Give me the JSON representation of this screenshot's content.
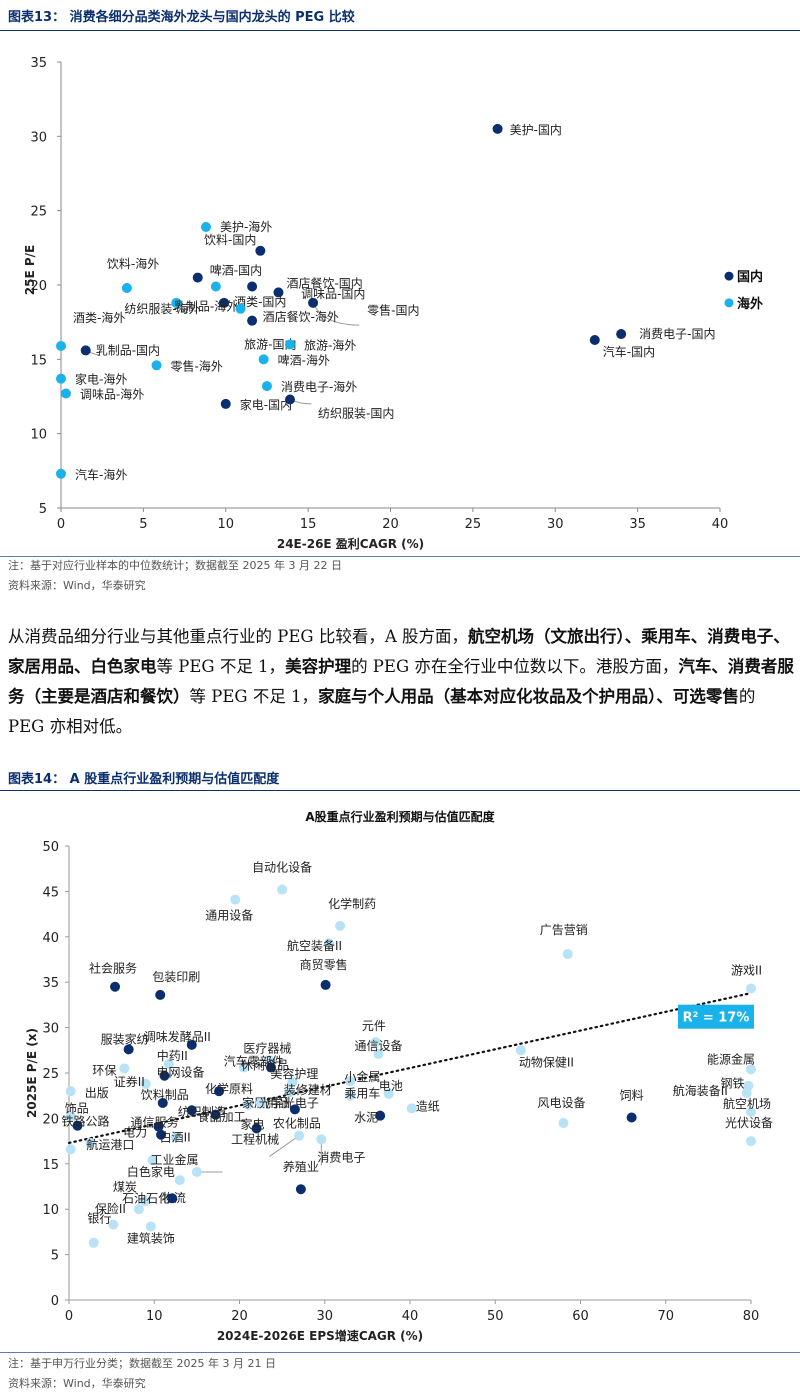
{
  "figure1": {
    "title": "图表13：  消费各细分品类海外龙头与国内龙头的 PEG 比较",
    "note": "注：基于对应行业样本的中位数统计；数据截至 2025 年 3 月 22 日",
    "source": "资料来源：Wind，华泰研究"
  },
  "paragraph": {
    "p1": "从消费品细分行业与其他重点行业的 PEG 比较看，A 股方面，",
    "b1": "航空机场（文旅出行）、乘用车、消费电子、家居用品、白色家电",
    "p2": "等 PEG 不足 1，",
    "b2": "美容护理",
    "p3": "的 PEG 亦在全行业中位数以下。港股方面，",
    "b3": "汽车、消费者服务（主要是酒店和餐饮）",
    "p4": "等 PEG 不足 1，",
    "b4": "家庭与个人用品（基本对应化妆品及个护用品）、可选零售",
    "p5": "的 PEG 亦相对低。"
  },
  "figure2": {
    "title": "图表14：  A 股重点行业盈利预期与估值匹配度",
    "note": "注：基于申万行业分类；数据截至 2025 年 3 月 21 日",
    "source": "资料来源：Wind，华泰研究"
  },
  "colors": {
    "domestic": "#0b2f6e",
    "overseas": "#1ab2ea",
    "ashare_dark": "#0b2f6e",
    "ashare_light": "#b8e2f5",
    "r2_box": "#1ab2ea"
  },
  "chart_data": [
    {
      "type": "scatter",
      "title": "",
      "xlabel": "24E-26E 盈利CAGR (%)",
      "ylabel": "25E P/E",
      "xlim": [
        0,
        40
      ],
      "ylim": [
        5,
        35
      ],
      "xticks": [
        0,
        5,
        10,
        15,
        20,
        25,
        30,
        35,
        40
      ],
      "yticks": [
        5,
        10,
        15,
        20,
        25,
        30,
        35
      ],
      "legend": "right",
      "series": [
        {
          "name": "国内",
          "color": "#0b2f6e",
          "points": [
            {
              "label": "美护-国内",
              "x": 26.5,
              "y": 30.5
            },
            {
              "label": "饮料-国内",
              "x": 12.1,
              "y": 22.3
            },
            {
              "label": "啤酒-国内",
              "x": 8.3,
              "y": 20.5
            },
            {
              "label": "酒店餐饮-国内",
              "x": 13.2,
              "y": 19.5
            },
            {
              "label": "调味品-国内",
              "x": 15.3,
              "y": 18.8
            },
            {
              "label": "零售-国内",
              "x": 11.6,
              "y": 19.9
            },
            {
              "label": "酒类-国内",
              "x": 9.9,
              "y": 18.8
            },
            {
              "label": "乳制品-国内",
              "x": 1.5,
              "y": 15.6
            },
            {
              "label": "旅游-国内",
              "x": 11.6,
              "y": 17.6
            },
            {
              "label": "家电-国内",
              "x": 10.0,
              "y": 12.0
            },
            {
              "label": "纺织服装-国内",
              "x": 13.9,
              "y": 12.3
            },
            {
              "label": "消费电子-国内",
              "x": 34.0,
              "y": 16.7
            },
            {
              "label": "汽车-国内",
              "x": 32.4,
              "y": 16.3
            }
          ]
        },
        {
          "name": "海外",
          "color": "#1ab2ea",
          "points": [
            {
              "label": "美护-海外",
              "x": 8.8,
              "y": 23.9
            },
            {
              "label": "饮料-海外",
              "x": 4.0,
              "y": 19.8
            },
            {
              "label": "纺织服装-海外",
              "x": 7.0,
              "y": 18.8
            },
            {
              "label": "乳制品-海外",
              "x": 9.4,
              "y": 19.9
            },
            {
              "label": "酒店餐饮-海外",
              "x": 10.9,
              "y": 18.4
            },
            {
              "label": "酒类-海外",
              "x": 0.0,
              "y": 15.9
            },
            {
              "label": "旅游-海外",
              "x": 13.9,
              "y": 16.0
            },
            {
              "label": "啤酒-海外",
              "x": 12.3,
              "y": 15.0
            },
            {
              "label": "零售-海外",
              "x": 5.8,
              "y": 14.6
            },
            {
              "label": "家电-海外",
              "x": 0.0,
              "y": 13.7
            },
            {
              "label": "调味品-海外",
              "x": 0.3,
              "y": 12.7
            },
            {
              "label": "消费电子-海外",
              "x": 12.5,
              "y": 13.2
            },
            {
              "label": "汽车-海外",
              "x": 0.0,
              "y": 7.3
            }
          ]
        }
      ]
    },
    {
      "type": "scatter",
      "title": "A股重点行业盈利预期与估值匹配度",
      "xlabel": "2024E-2026E EPS增速CAGR (%)",
      "ylabel": "2025E P/E (x)",
      "xlim": [
        0,
        80
      ],
      "ylim": [
        0,
        50
      ],
      "xticks": [
        0,
        10,
        20,
        30,
        40,
        50,
        60,
        70,
        80
      ],
      "yticks": [
        0,
        5,
        10,
        15,
        20,
        25,
        30,
        35,
        40,
        45,
        50
      ],
      "trendline": {
        "type": "linear",
        "dotted": true,
        "from": [
          0,
          17.3
        ],
        "to": [
          80,
          33.8
        ],
        "r2_label": "R² = 17%"
      },
      "points": [
        {
          "label": "自动化设备",
          "x": 25.0,
          "y": 45.2,
          "color": "light"
        },
        {
          "label": "通用设备",
          "x": 19.5,
          "y": 44.1,
          "color": "light"
        },
        {
          "label": "化学制药",
          "x": 31.8,
          "y": 41.2,
          "color": "light"
        },
        {
          "label": "航空装备II",
          "x": 30.5,
          "y": 39.3,
          "color": "light"
        },
        {
          "label": "广告营销",
          "x": 58.5,
          "y": 38.1,
          "color": "light"
        },
        {
          "label": "商贸零售",
          "x": 30.1,
          "y": 34.7,
          "color": "dark"
        },
        {
          "label": "社会服务",
          "x": 5.4,
          "y": 34.5,
          "color": "dark"
        },
        {
          "label": "包装印刷",
          "x": 10.7,
          "y": 33.6,
          "color": "dark"
        },
        {
          "label": "游戏II",
          "x": 80.0,
          "y": 34.3,
          "color": "light"
        },
        {
          "label": "元件",
          "x": 36.0,
          "y": 28.4,
          "color": "light"
        },
        {
          "label": "调味发酵品II",
          "x": 14.4,
          "y": 28.1,
          "color": "dark"
        },
        {
          "label": "服装家纺",
          "x": 7.0,
          "y": 27.6,
          "color": "dark"
        },
        {
          "label": "通信设备",
          "x": 36.3,
          "y": 27.1,
          "color": "light"
        },
        {
          "label": "医疗器械",
          "x": 23.5,
          "y": 26.4,
          "color": "light"
        },
        {
          "label": "中药II",
          "x": 11.7,
          "y": 26.0,
          "color": "light"
        },
        {
          "label": "汽车零部件",
          "x": 20.5,
          "y": 25.6,
          "color": "light"
        },
        {
          "label": "动物保健II",
          "x": 53.0,
          "y": 27.5,
          "color": "light"
        },
        {
          "label": "能源金属",
          "x": 80.0,
          "y": 25.4,
          "color": "light"
        },
        {
          "label": "环保",
          "x": 6.5,
          "y": 25.5,
          "color": "light"
        },
        {
          "label": "电网设备",
          "x": 11.2,
          "y": 24.7,
          "color": "dark"
        },
        {
          "label": "休闲食品",
          "x": 23.7,
          "y": 25.6,
          "color": "dark"
        },
        {
          "label": "美容护理",
          "x": 26.2,
          "y": 24.0,
          "color": "light"
        },
        {
          "label": "小金属",
          "x": 33.0,
          "y": 24.1,
          "color": "light"
        },
        {
          "label": "证券II",
          "x": 9.0,
          "y": 23.8,
          "color": "light"
        },
        {
          "label": "钢铁",
          "x": 79.7,
          "y": 23.6,
          "color": "light"
        },
        {
          "label": "航海装备II",
          "x": 79.5,
          "y": 22.8,
          "color": "light"
        },
        {
          "label": "化学原料",
          "x": 17.6,
          "y": 23.0,
          "color": "dark"
        },
        {
          "label": "出版",
          "x": 0.2,
          "y": 23.0,
          "color": "light"
        },
        {
          "label": "装修建材",
          "x": 25.9,
          "y": 22.9,
          "color": "light"
        },
        {
          "label": "乘用车",
          "x": 33.0,
          "y": 22.5,
          "color": "light"
        },
        {
          "label": "电池",
          "x": 37.5,
          "y": 22.7,
          "color": "light"
        },
        {
          "label": "饮料制品",
          "x": 11.0,
          "y": 21.7,
          "color": "dark"
        },
        {
          "label": "家居用品",
          "x": 21.0,
          "y": 21.5,
          "color": "light"
        },
        {
          "label": "纺织制造",
          "x": 14.4,
          "y": 20.9,
          "color": "dark"
        },
        {
          "label": "光学光电子",
          "x": 22.5,
          "y": 21.7,
          "color": "light"
        },
        {
          "label": "航空机场",
          "x": 80.0,
          "y": 20.7,
          "color": "light"
        },
        {
          "label": "饲料",
          "x": 66.0,
          "y": 20.1,
          "color": "dark"
        },
        {
          "label": "风电设备",
          "x": 58.0,
          "y": 19.5,
          "color": "light"
        },
        {
          "label": "造纸",
          "x": 40.2,
          "y": 21.1,
          "color": "light"
        },
        {
          "label": "农化制品",
          "x": 26.5,
          "y": 21.0,
          "color": "dark"
        },
        {
          "label": "水泥",
          "x": 36.5,
          "y": 20.3,
          "color": "dark"
        },
        {
          "label": "饰品",
          "x": 0.2,
          "y": 20.2,
          "color": "light"
        },
        {
          "label": "铁路公路",
          "x": 1.0,
          "y": 19.2,
          "color": "dark"
        },
        {
          "label": "通信服务",
          "x": 10.5,
          "y": 19.1,
          "color": "dark"
        },
        {
          "label": "食品加工",
          "x": 17.2,
          "y": 20.4,
          "color": "dark"
        },
        {
          "label": "家电",
          "x": 22.0,
          "y": 18.9,
          "color": "dark"
        },
        {
          "label": "光伏设备",
          "x": 80.0,
          "y": 17.5,
          "color": "light"
        },
        {
          "label": "电力",
          "x": 10.8,
          "y": 18.2,
          "color": "dark"
        },
        {
          "label": "白酒II",
          "x": 12.5,
          "y": 17.9,
          "color": "light"
        },
        {
          "label": "工程机械",
          "x": 27.0,
          "y": 18.1,
          "color": "light"
        },
        {
          "label": "消费电子",
          "x": 29.6,
          "y": 17.7,
          "color": "light"
        },
        {
          "label": "航运港口",
          "x": 2.5,
          "y": 17.3,
          "color": "light"
        },
        {
          "label": "工业金属",
          "x": 9.8,
          "y": 15.4,
          "color": "light"
        },
        {
          "label": "白色家电",
          "x": 15.0,
          "y": 14.1,
          "color": "light"
        },
        {
          "label": "物流",
          "x": 13.0,
          "y": 13.2,
          "color": "light"
        },
        {
          "label": "养殖业",
          "x": 27.2,
          "y": 12.2,
          "color": "dark"
        },
        {
          "label": "煤炭",
          "x": 8.9,
          "y": 10.9,
          "color": "light"
        },
        {
          "label": "石油石化",
          "x": 12.1,
          "y": 11.2,
          "color": "dark"
        },
        {
          "label": "保险II",
          "x": 8.2,
          "y": 10.0,
          "color": "light"
        },
        {
          "label": "银行",
          "x": 5.2,
          "y": 8.3,
          "color": "light"
        },
        {
          "label": "建筑装饰",
          "x": 9.6,
          "y": 8.1,
          "color": "light"
        },
        {
          "label": "",
          "x": 2.9,
          "y": 6.3,
          "color": "light"
        },
        {
          "label": "",
          "x": 0.2,
          "y": 16.6,
          "color": "light"
        }
      ]
    }
  ]
}
